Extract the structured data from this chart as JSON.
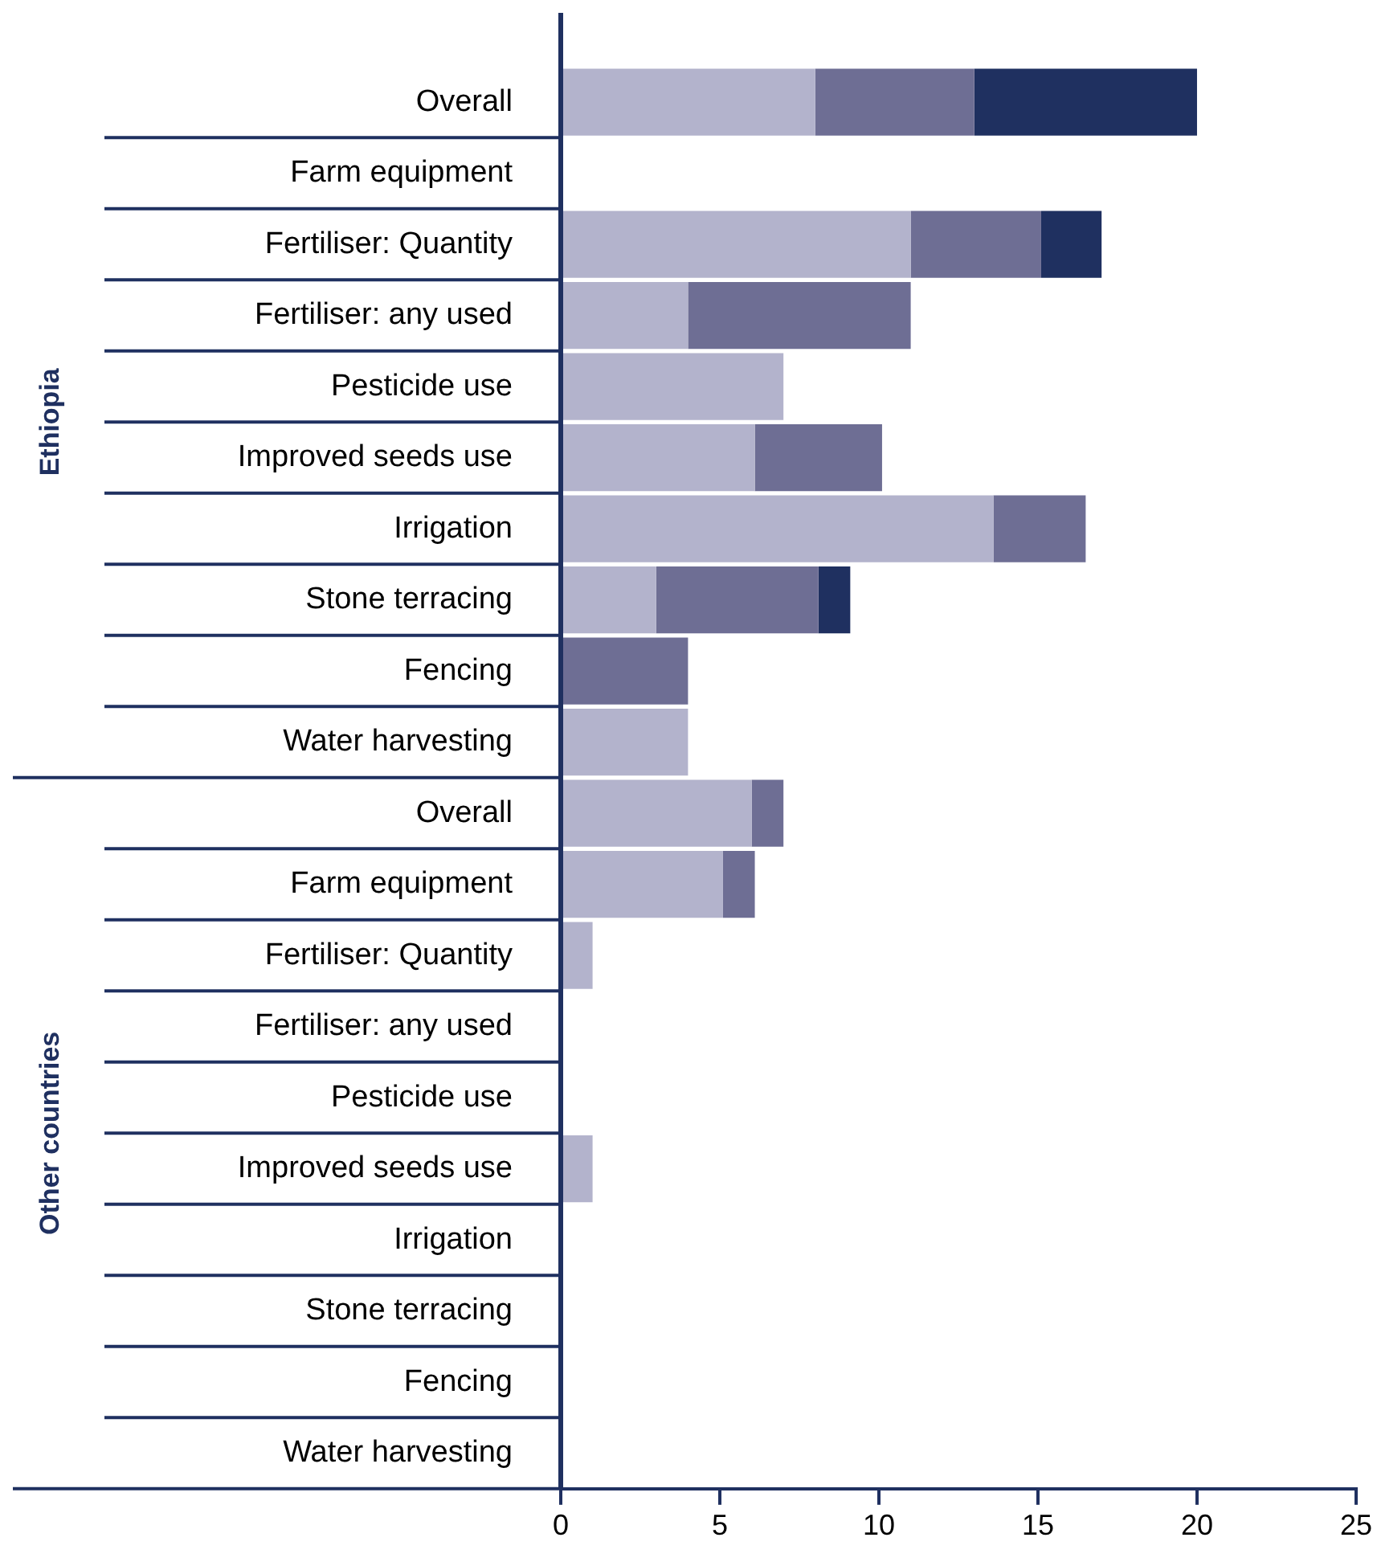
{
  "chart_data": {
    "type": "bar",
    "orientation": "horizontal",
    "stacked": true,
    "categories": [
      "Overall",
      "Farm equipment",
      "Fertiliser: Quantity",
      "Fertiliser: any used",
      "Pesticide use",
      "Improved seeds use",
      "Irrigation",
      "Stone terracing",
      "Fencing",
      "Water harvesting",
      "Overall",
      "Farm equipment",
      "Fertiliser: Quantity",
      "Fertiliser: any used",
      "Pesticide use",
      "Improved seeds use",
      "Irrigation",
      "Stone terracing",
      "Fencing",
      "Water harvesting"
    ],
    "series": [
      {
        "color": "#b3b3cc",
        "values": [
          8,
          0,
          11,
          4,
          7,
          6.1,
          13.6,
          3,
          0,
          4,
          6,
          5.1,
          1,
          0,
          0,
          1,
          0,
          0,
          0,
          0
        ]
      },
      {
        "color": "#6e6e94",
        "values": [
          5,
          0,
          4.1,
          7,
          0,
          4,
          2.9,
          5.1,
          4,
          0,
          1,
          1,
          0,
          0,
          0,
          0,
          0,
          0,
          0,
          0
        ]
      },
      {
        "color": "#1f3060",
        "values": [
          7,
          0,
          1.9,
          0,
          0,
          0,
          0,
          1,
          0,
          0,
          0,
          0,
          0,
          0,
          0,
          0,
          0,
          0,
          0,
          0
        ]
      }
    ],
    "xlim": [
      0,
      25
    ],
    "xticks": [
      0,
      5,
      10,
      15,
      20,
      25
    ],
    "annotations": [
      "Ethiopia",
      "Other countries"
    ]
  }
}
